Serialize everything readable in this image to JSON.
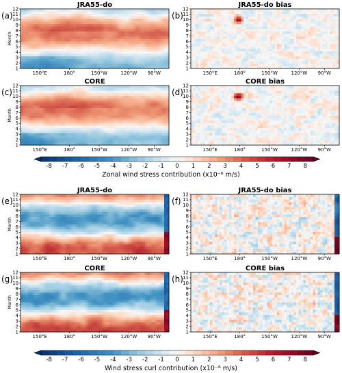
{
  "chart_data": [
    {
      "type": "heatmap",
      "panel_label": "(a)",
      "title": "JRA55-do",
      "ylabel": "Month",
      "y_ticks": [
        "1",
        "2",
        "3",
        "4",
        "5",
        "6",
        "7",
        "8",
        "9",
        "10",
        "11",
        "12"
      ],
      "x_ticks": [
        "150°E",
        "180°",
        "150°W",
        "120°W",
        "90°W"
      ],
      "pattern": "zonal"
    },
    {
      "type": "heatmap",
      "panel_label": "(b)",
      "title": "JRA55-do bias",
      "ylabel": "",
      "y_ticks": [
        "1",
        "2",
        "3",
        "4",
        "5",
        "6",
        "7",
        "8",
        "9",
        "10",
        "11",
        "12"
      ],
      "x_ticks": [
        "150°E",
        "180°",
        "150°W",
        "120°W",
        "90°W"
      ],
      "pattern": "bias"
    },
    {
      "type": "heatmap",
      "panel_label": "(c)",
      "title": "CORE",
      "ylabel": "Month",
      "y_ticks": [
        "1",
        "2",
        "3",
        "4",
        "5",
        "6",
        "7",
        "8",
        "9",
        "10",
        "11",
        "12"
      ],
      "x_ticks": [
        "150°E",
        "180°",
        "150°W",
        "120°W",
        "90°W"
      ],
      "pattern": "zonal"
    },
    {
      "type": "heatmap",
      "panel_label": "(d)",
      "title": "CORE bias",
      "ylabel": "",
      "y_ticks": [
        "1",
        "2",
        "3",
        "4",
        "5",
        "6",
        "7",
        "8",
        "9",
        "10",
        "11",
        "12"
      ],
      "x_ticks": [
        "150°E",
        "180°",
        "150°W",
        "120°W",
        "90°W"
      ],
      "pattern": "bias"
    },
    {
      "type": "heatmap",
      "panel_label": "(e)",
      "title": "JRA55-do",
      "ylabel": "Month",
      "y_ticks": [
        "1",
        "2",
        "3",
        "4",
        "5",
        "6",
        "7",
        "8",
        "9",
        "10",
        "11",
        "12"
      ],
      "x_ticks": [
        "150°E",
        "180°",
        "150°W",
        "120°W",
        "90°W"
      ],
      "pattern": "curl"
    },
    {
      "type": "heatmap",
      "panel_label": "(f)",
      "title": "JRA55-do bias",
      "ylabel": "",
      "y_ticks": [
        "1",
        "2",
        "3",
        "4",
        "5",
        "6",
        "7",
        "8",
        "9",
        "10",
        "11",
        "12"
      ],
      "x_ticks": [
        "150°E",
        "180°",
        "150°W",
        "120°W",
        "90°W"
      ],
      "pattern": "bias2"
    },
    {
      "type": "heatmap",
      "panel_label": "(g)",
      "title": "CORE",
      "ylabel": "Month",
      "y_ticks": [
        "1",
        "2",
        "3",
        "4",
        "5",
        "6",
        "7",
        "8",
        "9",
        "10",
        "11",
        "12"
      ],
      "x_ticks": [
        "150°E",
        "180°",
        "150°W",
        "120°W",
        "90°W"
      ],
      "pattern": "curl"
    },
    {
      "type": "heatmap",
      "panel_label": "(h)",
      "title": "CORE bias",
      "ylabel": "",
      "y_ticks": [
        "1",
        "2",
        "3",
        "4",
        "5",
        "6",
        "7",
        "8",
        "9",
        "10",
        "11",
        "12"
      ],
      "x_ticks": [
        "150°E",
        "180°",
        "150°W",
        "120°W",
        "90°W"
      ],
      "pattern": "bias2"
    }
  ],
  "colorbars": [
    {
      "label": "Zonal wind stress contribution (x10⁻⁶ m/s)",
      "ticks": [
        "-8",
        "-7",
        "-6",
        "-5",
        "-4",
        "-3",
        "-2",
        "-1",
        "0",
        "1",
        "2",
        "3",
        "4",
        "5",
        "6",
        "7",
        "8"
      ],
      "range": [
        -8.5,
        8.5
      ]
    },
    {
      "label": "Wind stress curl contribution (x10⁻⁶ m/s)",
      "ticks": [
        "-8",
        "-7",
        "-6",
        "-5",
        "-4",
        "-3",
        "-2",
        "-1",
        "0",
        "1",
        "2",
        "3",
        "4",
        "5",
        "6",
        "7",
        "8"
      ],
      "range": [
        -8.5,
        8.5
      ]
    }
  ]
}
